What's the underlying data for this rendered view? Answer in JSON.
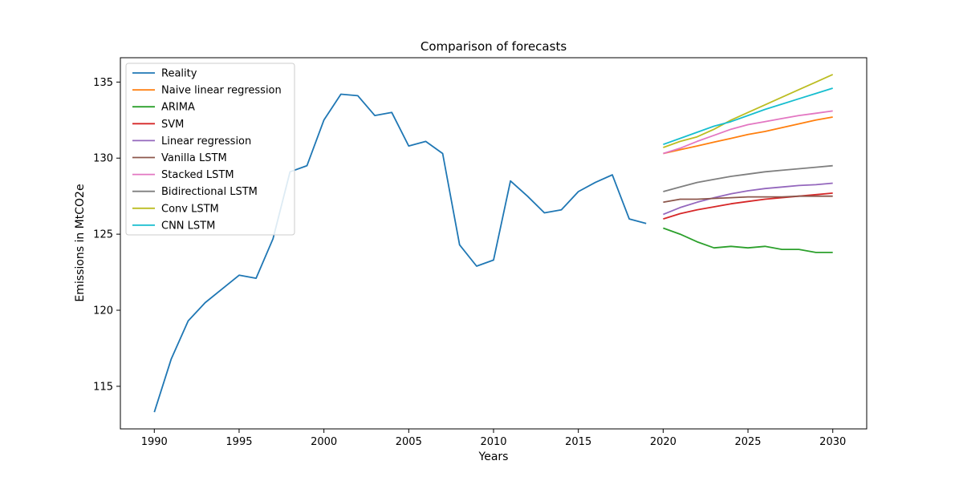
{
  "chart_data": {
    "type": "line",
    "title": "Comparison of forecasts",
    "xlabel": "Years",
    "ylabel": "Emissions in MtCO2e",
    "xlim": [
      1988,
      2032
    ],
    "ylim": [
      112.2,
      136.6
    ],
    "xticks": [
      1990,
      1995,
      2000,
      2005,
      2010,
      2015,
      2020,
      2025,
      2030
    ],
    "yticks": [
      115,
      120,
      125,
      130,
      135
    ],
    "grid": false,
    "legend_position": "upper-left",
    "series": [
      {
        "name": "Reality",
        "color": "#1f77b4",
        "x": [
          1990,
          1991,
          1992,
          1993,
          1994,
          1995,
          1996,
          1997,
          1998,
          1999,
          2000,
          2001,
          2002,
          2003,
          2004,
          2005,
          2006,
          2007,
          2008,
          2009,
          2010,
          2011,
          2012,
          2013,
          2014,
          2015,
          2016,
          2017,
          2018,
          2019
        ],
        "y": [
          113.3,
          116.8,
          119.3,
          120.5,
          121.4,
          122.3,
          122.1,
          124.7,
          129.1,
          129.5,
          132.5,
          134.2,
          134.1,
          132.8,
          133.0,
          130.8,
          131.1,
          130.3,
          124.3,
          122.9,
          123.3,
          128.5,
          127.5,
          126.4,
          126.6,
          127.8,
          128.4,
          128.9,
          126.0,
          125.7
        ]
      },
      {
        "name": "Naive linear regression",
        "color": "#ff7f0e",
        "x": [
          2020,
          2021,
          2022,
          2023,
          2024,
          2025,
          2026,
          2027,
          2028,
          2029,
          2030
        ],
        "y": [
          130.3,
          130.55,
          130.8,
          131.05,
          131.3,
          131.55,
          131.75,
          132.0,
          132.25,
          132.5,
          132.7
        ]
      },
      {
        "name": "ARIMA",
        "color": "#2ca02c",
        "x": [
          2020,
          2021,
          2022,
          2023,
          2024,
          2025,
          2026,
          2027,
          2028,
          2029,
          2030
        ],
        "y": [
          125.4,
          125.0,
          124.5,
          124.1,
          124.2,
          124.1,
          124.2,
          124.0,
          124.0,
          123.8,
          123.8
        ]
      },
      {
        "name": "SVM",
        "color": "#d62728",
        "x": [
          2020,
          2021,
          2022,
          2023,
          2024,
          2025,
          2026,
          2027,
          2028,
          2029,
          2030
        ],
        "y": [
          126.0,
          126.35,
          126.6,
          126.8,
          127.0,
          127.15,
          127.3,
          127.4,
          127.5,
          127.6,
          127.7
        ]
      },
      {
        "name": "Linear regression",
        "color": "#9467bd",
        "x": [
          2020,
          2021,
          2022,
          2023,
          2024,
          2025,
          2026,
          2027,
          2028,
          2029,
          2030
        ],
        "y": [
          126.3,
          126.75,
          127.1,
          127.4,
          127.65,
          127.85,
          128.0,
          128.1,
          128.2,
          128.25,
          128.35
        ]
      },
      {
        "name": "Vanilla LSTM",
        "color": "#8c564b",
        "x": [
          2020,
          2021,
          2022,
          2023,
          2024,
          2025,
          2026,
          2027,
          2028,
          2029,
          2030
        ],
        "y": [
          127.1,
          127.3,
          127.3,
          127.35,
          127.4,
          127.45,
          127.45,
          127.45,
          127.5,
          127.5,
          127.5
        ]
      },
      {
        "name": "Stacked LSTM",
        "color": "#e377c2",
        "x": [
          2020,
          2021,
          2022,
          2023,
          2024,
          2025,
          2026,
          2027,
          2028,
          2029,
          2030
        ],
        "y": [
          130.3,
          130.65,
          131.1,
          131.5,
          131.9,
          132.2,
          132.4,
          132.6,
          132.8,
          132.95,
          133.1
        ]
      },
      {
        "name": "Bidirectional LSTM",
        "color": "#7f7f7f",
        "x": [
          2020,
          2021,
          2022,
          2023,
          2024,
          2025,
          2026,
          2027,
          2028,
          2029,
          2030
        ],
        "y": [
          127.8,
          128.1,
          128.4,
          128.6,
          128.8,
          128.95,
          129.1,
          129.2,
          129.3,
          129.4,
          129.5
        ]
      },
      {
        "name": "Conv LSTM",
        "color": "#bcbd22",
        "x": [
          2020,
          2021,
          2022,
          2023,
          2024,
          2025,
          2026,
          2027,
          2028,
          2029,
          2030
        ],
        "y": [
          130.7,
          131.1,
          131.4,
          131.9,
          132.5,
          133.0,
          133.5,
          134.0,
          134.5,
          135.0,
          135.5
        ]
      },
      {
        "name": "CNN LSTM",
        "color": "#17becf",
        "x": [
          2020,
          2021,
          2022,
          2023,
          2024,
          2025,
          2026,
          2027,
          2028,
          2029,
          2030
        ],
        "y": [
          130.9,
          131.3,
          131.7,
          132.1,
          132.4,
          132.8,
          133.2,
          133.55,
          133.9,
          134.25,
          134.6
        ]
      }
    ]
  }
}
